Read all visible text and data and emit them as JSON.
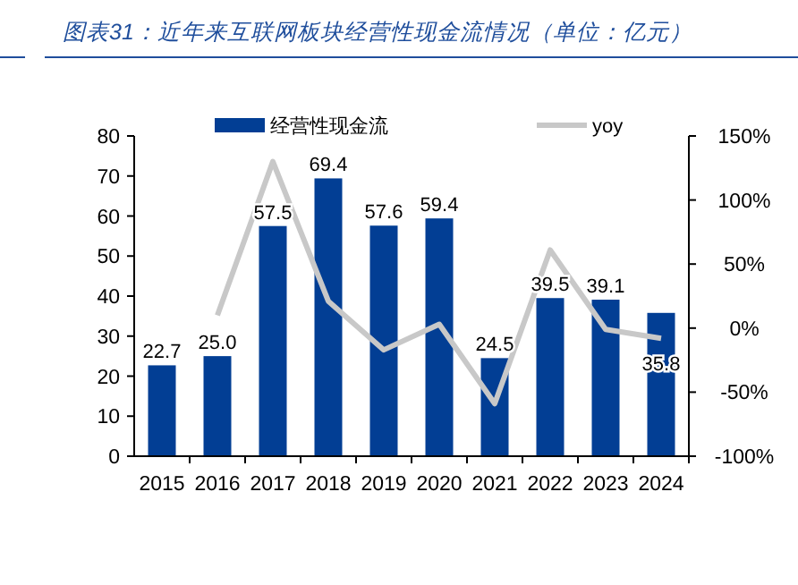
{
  "chart_data": {
    "type": "bar",
    "title": "图表31：近年来互联网板块经营性现金流情况（单位：亿元）",
    "categories": [
      "2015",
      "2016",
      "2017",
      "2018",
      "2019",
      "2020",
      "2021",
      "2022",
      "2023",
      "2024"
    ],
    "series": [
      {
        "name": "经营性现金流",
        "color": "#023e94",
        "values": [
          22.7,
          25.0,
          57.5,
          69.4,
          57.6,
          59.4,
          24.5,
          39.5,
          39.1,
          35.8
        ],
        "value_labels": [
          "22.7",
          "25.0",
          "57.5",
          "69.4",
          "57.6",
          "59.4",
          "24.5",
          "39.5",
          "39.1",
          "35.8"
        ]
      },
      {
        "name": "yoy",
        "type": "line",
        "axis": "y2",
        "color": "#c8c8c8",
        "values": [
          null,
          10,
          130,
          21,
          -17,
          3,
          -59,
          61,
          -1,
          -8
        ]
      }
    ],
    "ylim": [
      0,
      80
    ],
    "yticks": [
      0,
      10,
      20,
      30,
      40,
      50,
      60,
      70,
      80
    ],
    "y2lim": [
      -100,
      150
    ],
    "y2ticks": [
      {
        "value": -100,
        "label": "-100%"
      },
      {
        "value": -50,
        "label": "-50%"
      },
      {
        "value": 0,
        "label": "0%"
      },
      {
        "value": 50,
        "label": "50%"
      },
      {
        "value": 100,
        "label": "100%"
      },
      {
        "value": 150,
        "label": "150%"
      }
    ],
    "legend": "top",
    "marker": "none",
    "line_style": "solid",
    "grid": false
  }
}
